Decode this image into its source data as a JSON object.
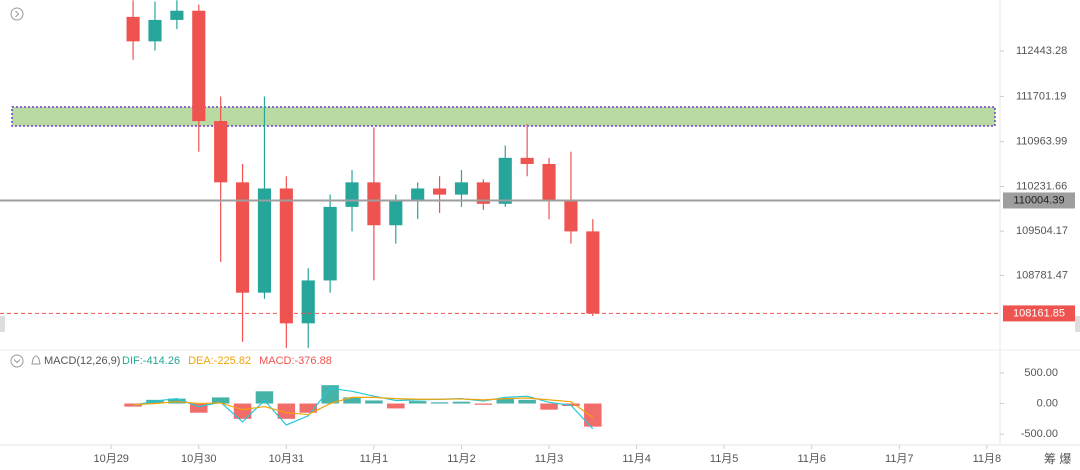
{
  "chart_data": {
    "type": "candlestick",
    "x": [
      0.25,
      0.5,
      0.75,
      1.0,
      1.25,
      1.5,
      1.75,
      2.0,
      2.25,
      2.5,
      2.75,
      3.0,
      3.25,
      3.5,
      3.75,
      4.0,
      4.25,
      4.5,
      4.75,
      5.0,
      5.25,
      5.5
    ],
    "open": [
      113000,
      112600,
      112950,
      113100,
      111300,
      110300,
      108500,
      110200,
      108000,
      108700,
      109900,
      110300,
      109600,
      110000,
      110200,
      110100,
      110300,
      109950,
      110700,
      110600,
      110000,
      109500
    ],
    "high": [
      113270,
      113250,
      113270,
      113200,
      111700,
      110600,
      111700,
      110400,
      108900,
      110100,
      110500,
      111200,
      110100,
      110300,
      110400,
      110500,
      110350,
      110900,
      111250,
      110700,
      110800,
      109700
    ],
    "low": [
      112300,
      112450,
      112800,
      110800,
      109000,
      107700,
      108400,
      107600,
      107600,
      108500,
      109500,
      108700,
      109300,
      109700,
      109800,
      109900,
      109850,
      109900,
      110400,
      109700,
      109300,
      108120
    ],
    "close": [
      112600,
      112950,
      113100,
      111300,
      110300,
      108500,
      110200,
      108000,
      108700,
      109900,
      110300,
      109600,
      110000,
      110200,
      110100,
      110300,
      109950,
      110700,
      110600,
      110000,
      109500,
      108162
    ],
    "up_color": "#26a69a",
    "down_color": "#ef5350",
    "xlim": [
      -1.27,
      10.15
    ],
    "ylim": [
      107565,
      113275
    ],
    "yticks": [
      112443.28,
      111701.19,
      110963.99,
      110231.66,
      109504.17,
      108781.47
    ],
    "xticks": [
      {
        "value": 0,
        "label": "10月29"
      },
      {
        "value": 1,
        "label": "10月30"
      },
      {
        "value": 2,
        "label": "10月31"
      },
      {
        "value": 3,
        "label": "11月1"
      },
      {
        "value": 4,
        "label": "11月2"
      },
      {
        "value": 5,
        "label": "11月3"
      },
      {
        "value": 6,
        "label": "11月4"
      },
      {
        "value": 7,
        "label": "11月5"
      },
      {
        "value": 8,
        "label": "11月6"
      },
      {
        "value": 9,
        "label": "11月7"
      },
      {
        "value": 10,
        "label": "11月8"
      }
    ],
    "zone": {
      "range": [
        111220,
        111530
      ],
      "color": "#b9dba3",
      "border": "#6a3fd0"
    },
    "price_lines": [
      {
        "value": 110004.39,
        "color": "#9e9e9e",
        "text_color": "#222222",
        "dashed": false
      },
      {
        "value": 108161.85,
        "color": "#ef5350",
        "text_color": "#ffffff",
        "dashed": true
      }
    ],
    "macd": {
      "title": "MACD(12,26,9)",
      "readouts": [
        {
          "text": "DIF:-414.26",
          "color": "#26a69a"
        },
        {
          "text": "DEA:-225.82",
          "color": "#f0a30a"
        },
        {
          "text": "MACD:-376.88",
          "color": "#ef5350"
        }
      ],
      "ylim": [
        -677,
        629
      ],
      "yticks": [
        {
          "value": 500,
          "label": "500.00"
        },
        {
          "value": 0,
          "label": "0.00"
        },
        {
          "value": -500,
          "label": "-500.00"
        }
      ],
      "histogram": [
        -50,
        60,
        80,
        -150,
        100,
        -250,
        200,
        -250,
        -150,
        300,
        100,
        50,
        -80,
        40,
        20,
        30,
        -20,
        80,
        60,
        -100,
        -40,
        -377
      ],
      "series": [
        {
          "color": "#26c6da",
          "values": [
            -30,
            40,
            80,
            -50,
            20,
            -300,
            50,
            -350,
            -200,
            250,
            200,
            120,
            50,
            60,
            70,
            80,
            40,
            100,
            120,
            20,
            -30,
            -414
          ]
        },
        {
          "color": "#f0a30a",
          "values": [
            -20,
            0,
            30,
            0,
            10,
            -100,
            -50,
            -150,
            -180,
            0,
            100,
            100,
            80,
            70,
            70,
            75,
            60,
            80,
            90,
            60,
            30,
            -226
          ]
        }
      ]
    },
    "corner_text": "筹 爆"
  }
}
